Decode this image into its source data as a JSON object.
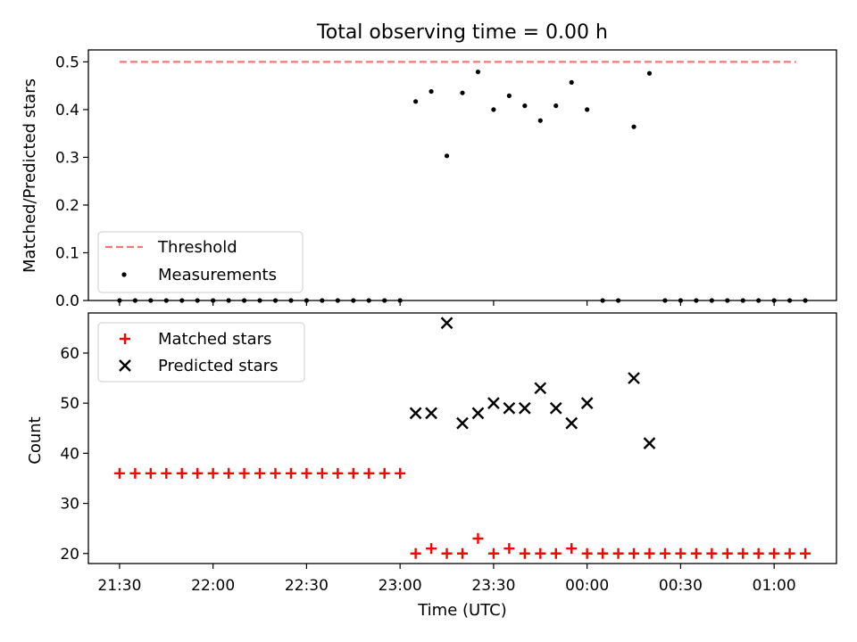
{
  "chart_data": {
    "type": "scatter",
    "title": "Total observing time = 0.00 h",
    "xlabel": "Time (UTC)",
    "x_ticks": [
      "21:30",
      "22:00",
      "22:30",
      "23:00",
      "23:30",
      "00:00",
      "00:30",
      "01:00"
    ],
    "x_tick_minutes": [
      0,
      30,
      60,
      90,
      120,
      150,
      180,
      210
    ],
    "x_range_minutes": [
      -10,
      230
    ],
    "panels": [
      {
        "ylabel": "Matched/Predicted stars",
        "ylim": [
          0,
          0.525
        ],
        "y_ticks": [
          0.0,
          0.1,
          0.2,
          0.3,
          0.4,
          0.5
        ],
        "y_tick_labels": [
          "0.0",
          "0.1",
          "0.2",
          "0.3",
          "0.4",
          "0.5"
        ],
        "legend_position": "lower-left",
        "series": [
          {
            "name": "Threshold",
            "kind": "line",
            "x_minutes": [
              0,
              217
            ],
            "values": [
              0.5,
              0.5
            ],
            "color": "#f07878"
          },
          {
            "name": "Measurements",
            "kind": "dot",
            "color": "#000000",
            "x_minutes": [
              0,
              5,
              10,
              15,
              20,
              25,
              30,
              35,
              40,
              45,
              50,
              55,
              60,
              65,
              70,
              75,
              80,
              85,
              90,
              95,
              100,
              105,
              110,
              115,
              120,
              125,
              130,
              135,
              140,
              145,
              150,
              155,
              160,
              165,
              170,
              175,
              180,
              185,
              190,
              195,
              200,
              205,
              210,
              215,
              220
            ],
            "values": [
              0,
              0,
              0,
              0,
              0,
              0,
              0,
              0,
              0,
              0,
              0,
              0,
              0,
              0,
              0,
              0,
              0,
              0,
              0,
              0.417,
              0.438,
              0.303,
              0.435,
              0.479,
              0.4,
              0.429,
              0.408,
              0.377,
              0.408,
              0.457,
              0.4,
              0,
              0,
              0.364,
              0.476,
              0,
              0,
              0,
              0,
              0,
              0,
              0,
              0,
              0,
              0
            ]
          }
        ]
      },
      {
        "ylabel": "Count",
        "ylim": [
          18,
          68
        ],
        "y_ticks": [
          20,
          30,
          40,
          50,
          60
        ],
        "y_tick_labels": [
          "20",
          "30",
          "40",
          "50",
          "60"
        ],
        "legend_position": "upper-left",
        "series": [
          {
            "name": "Matched stars",
            "kind": "plus",
            "color": "#ff0000",
            "x_minutes": [
              0,
              5,
              10,
              15,
              20,
              25,
              30,
              35,
              40,
              45,
              50,
              55,
              60,
              65,
              70,
              75,
              80,
              85,
              90,
              95,
              100,
              105,
              110,
              115,
              120,
              125,
              130,
              135,
              140,
              145,
              150,
              155,
              160,
              165,
              170,
              175,
              180,
              185,
              190,
              195,
              200,
              205,
              210,
              215,
              220
            ],
            "values": [
              36,
              36,
              36,
              36,
              36,
              36,
              36,
              36,
              36,
              36,
              36,
              36,
              36,
              36,
              36,
              36,
              36,
              36,
              36,
              20,
              21,
              20,
              20,
              23,
              20,
              21,
              20,
              20,
              20,
              21,
              20,
              20,
              20,
              20,
              20,
              20,
              20,
              20,
              20,
              20,
              20,
              20,
              20,
              20,
              20
            ]
          },
          {
            "name": "Predicted stars",
            "kind": "x",
            "color": "#000000",
            "x_minutes": [
              95,
              100,
              105,
              110,
              115,
              120,
              125,
              130,
              135,
              140,
              145,
              150,
              165,
              170
            ],
            "values": [
              48,
              48,
              66,
              46,
              48,
              50,
              49,
              49,
              53,
              49,
              46,
              50,
              55,
              42
            ]
          }
        ]
      }
    ]
  }
}
